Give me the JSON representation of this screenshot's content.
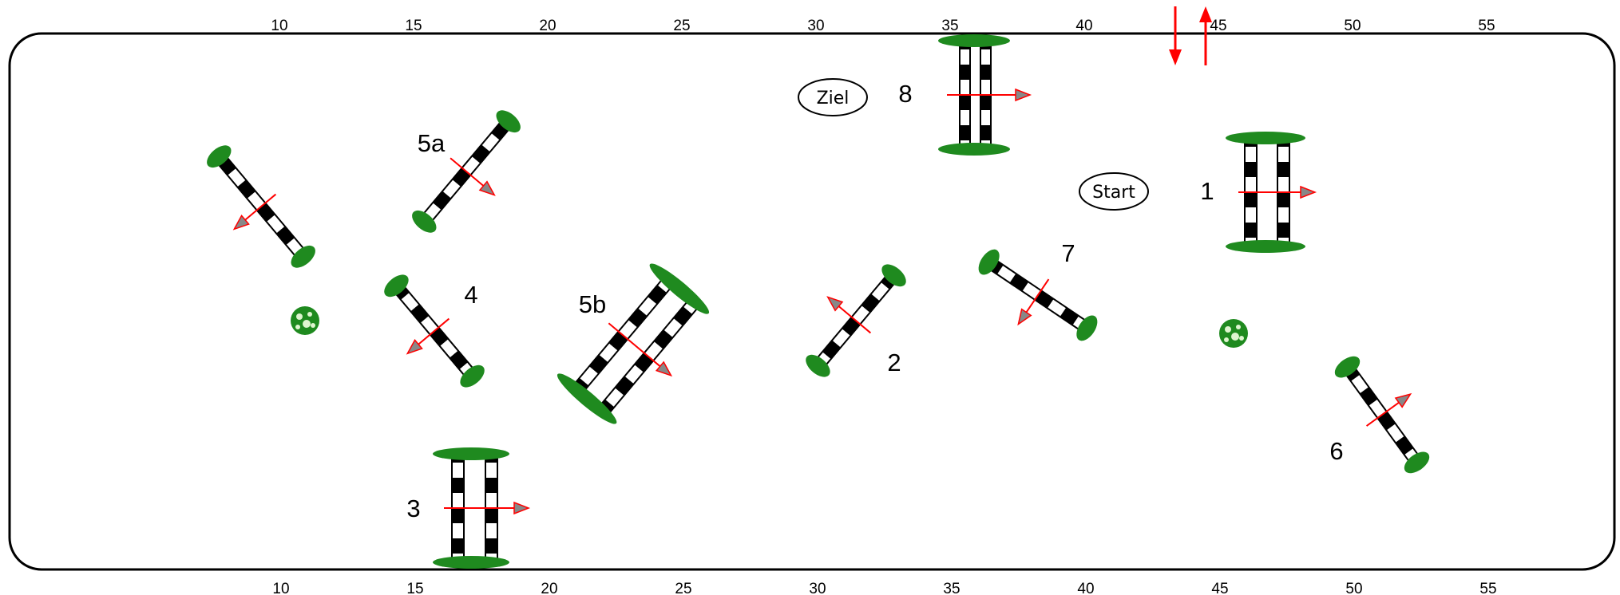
{
  "ruler": {
    "labels": [
      "10",
      "15",
      "20",
      "25",
      "30",
      "35",
      "40",
      "45",
      "50",
      "55"
    ]
  },
  "markers": {
    "finish": "Ziel",
    "start": "Start"
  },
  "jumps": [
    {
      "id": "j1",
      "label": "1",
      "type": "oxer"
    },
    {
      "id": "j2",
      "label": "2",
      "type": "vertical"
    },
    {
      "id": "j3",
      "label": "3",
      "type": "oxer"
    },
    {
      "id": "j4",
      "label": "4",
      "type": "vertical"
    },
    {
      "id": "j5a",
      "label": "5a",
      "type": "vertical"
    },
    {
      "id": "j5b",
      "label": "5b",
      "type": "oxer"
    },
    {
      "id": "j6",
      "label": "6",
      "type": "vertical"
    },
    {
      "id": "j7",
      "label": "7",
      "type": "vertical"
    },
    {
      "id": "j8",
      "label": "8",
      "type": "oxer"
    },
    {
      "id": "unlabeled",
      "label": "",
      "type": "vertical"
    }
  ],
  "colors": {
    "arena_border": "#000000",
    "pole_dark": "#000000",
    "pole_light": "#ffffff",
    "wing_green": "#1f8a1f",
    "direction_red": "#ff0000",
    "arrow_fill": "#888888"
  }
}
